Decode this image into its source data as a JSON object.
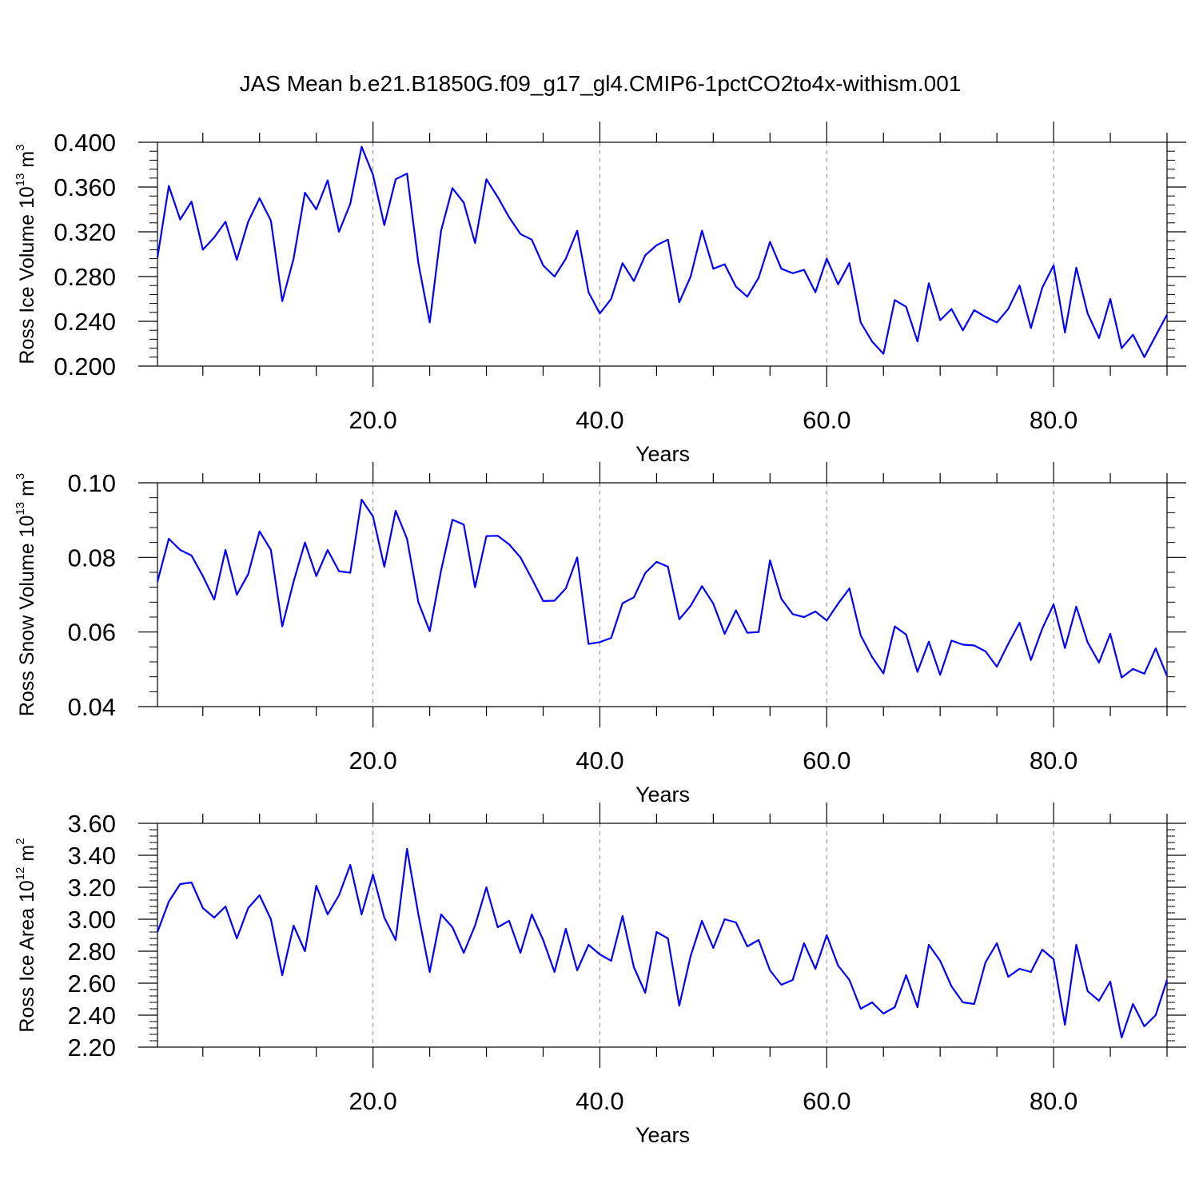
{
  "title": "JAS Mean b.e21.B1850G.f09_g17_gl4.CMIP6-1pctCO2to4x-withism.001",
  "colors": {
    "line": "#0000ff",
    "axis": "#000000",
    "grid": "#888888"
  },
  "chart_data": [
    {
      "type": "line",
      "ylabel": {
        "main": "Ross Ice Volume 10",
        "exp": "13",
        "unit": " m",
        "unit_exp": "3"
      },
      "xlabel": "Years",
      "xlim": [
        1,
        90
      ],
      "ylim": [
        0.2,
        0.4
      ],
      "xticks": [
        20,
        40,
        60,
        80
      ],
      "xtick_labels": [
        "20.0",
        "40.0",
        "60.0",
        "80.0"
      ],
      "yticks": [
        0.2,
        0.24,
        0.28,
        0.32,
        0.36,
        0.4
      ],
      "ytick_labels": [
        "0.200",
        "0.240",
        "0.280",
        "0.320",
        "0.360",
        "0.400"
      ],
      "grid": "vertical dashed at x ticks",
      "series": [
        {
          "x_start": 1,
          "values": [
            0.297,
            0.361,
            0.331,
            0.347,
            0.304,
            0.315,
            0.329,
            0.295,
            0.329,
            0.35,
            0.33,
            0.258,
            0.296,
            0.355,
            0.34,
            0.366,
            0.32,
            0.345,
            0.396,
            0.371,
            0.326,
            0.367,
            0.372,
            0.292,
            0.239,
            0.321,
            0.359,
            0.346,
            0.31,
            0.367,
            0.351,
            0.333,
            0.318,
            0.313,
            0.29,
            0.28,
            0.296,
            0.321,
            0.266,
            0.247,
            0.26,
            0.292,
            0.276,
            0.299,
            0.308,
            0.313,
            0.257,
            0.28,
            0.321,
            0.287,
            0.291,
            0.271,
            0.262,
            0.279,
            0.311,
            0.287,
            0.283,
            0.286,
            0.266,
            0.296,
            0.273,
            0.292,
            0.239,
            0.222,
            0.211,
            0.259,
            0.253,
            0.222,
            0.274,
            0.241,
            0.251,
            0.232,
            0.25,
            0.244,
            0.239,
            0.251,
            0.272,
            0.234,
            0.27,
            0.29,
            0.23,
            0.288,
            0.247,
            0.225,
            0.26,
            0.216,
            0.228,
            0.208,
            0.227,
            0.246
          ]
        }
      ]
    },
    {
      "type": "line",
      "ylabel": {
        "main": "Ross Snow Volume 10",
        "exp": "13",
        "unit": " m",
        "unit_exp": "3"
      },
      "xlabel": "Years",
      "xlim": [
        1,
        90
      ],
      "ylim": [
        0.04,
        0.1
      ],
      "xticks": [
        20,
        40,
        60,
        80
      ],
      "xtick_labels": [
        "20.0",
        "40.0",
        "60.0",
        "80.0"
      ],
      "yticks": [
        0.04,
        0.06,
        0.08,
        0.1
      ],
      "ytick_labels": [
        "0.04",
        "0.06",
        "0.08",
        "0.10"
      ],
      "grid": "vertical dashed at x ticks",
      "series": [
        {
          "x_start": 1,
          "values": [
            0.0735,
            0.085,
            0.082,
            0.0805,
            0.075,
            0.0687,
            0.082,
            0.07,
            0.0755,
            0.087,
            0.082,
            0.0615,
            0.0735,
            0.084,
            0.075,
            0.082,
            0.0763,
            0.0759,
            0.0955,
            0.091,
            0.0775,
            0.0925,
            0.085,
            0.068,
            0.0602,
            0.0765,
            0.0901,
            0.0888,
            0.072,
            0.0857,
            0.0858,
            0.0835,
            0.08,
            0.0743,
            0.0683,
            0.0684,
            0.0717,
            0.08,
            0.0568,
            0.0573,
            0.0584,
            0.0677,
            0.0693,
            0.0758,
            0.0788,
            0.0775,
            0.0634,
            0.067,
            0.0723,
            0.0676,
            0.0595,
            0.0658,
            0.0598,
            0.06,
            0.0792,
            0.0689,
            0.0648,
            0.064,
            0.0655,
            0.0631,
            0.0676,
            0.0717,
            0.0591,
            0.0533,
            0.0489,
            0.0615,
            0.0593,
            0.0493,
            0.0574,
            0.0485,
            0.0577,
            0.0566,
            0.0564,
            0.0548,
            0.0507,
            0.0568,
            0.0625,
            0.0525,
            0.0609,
            0.0674,
            0.0557,
            0.0668,
            0.0572,
            0.0518,
            0.0595,
            0.0478,
            0.0501,
            0.0488,
            0.0556,
            0.0482
          ]
        }
      ]
    },
    {
      "type": "line",
      "ylabel": {
        "main": "Ross Ice Area 10",
        "exp": "12",
        "unit": " m",
        "unit_exp": "2"
      },
      "xlabel": "Years",
      "xlim": [
        1,
        90
      ],
      "ylim": [
        2.2,
        3.6
      ],
      "xticks": [
        20,
        40,
        60,
        80
      ],
      "xtick_labels": [
        "20.0",
        "40.0",
        "60.0",
        "80.0"
      ],
      "yticks": [
        2.2,
        2.4,
        2.6,
        2.8,
        3.0,
        3.2,
        3.4,
        3.6
      ],
      "ytick_labels": [
        "2.20",
        "2.40",
        "2.60",
        "2.80",
        "3.00",
        "3.20",
        "3.40",
        "3.60"
      ],
      "grid": "vertical dashed at x ticks",
      "series": [
        {
          "x_start": 1,
          "values": [
            2.92,
            3.11,
            3.22,
            3.23,
            3.07,
            3.01,
            3.08,
            2.88,
            3.07,
            3.15,
            3.0,
            2.65,
            2.96,
            2.8,
            3.21,
            3.03,
            3.15,
            3.34,
            3.03,
            3.28,
            3.01,
            2.87,
            3.44,
            3.03,
            2.67,
            3.03,
            2.95,
            2.79,
            2.96,
            3.2,
            2.95,
            2.99,
            2.79,
            3.03,
            2.87,
            2.67,
            2.94,
            2.68,
            2.84,
            2.78,
            2.74,
            3.02,
            2.7,
            2.54,
            2.92,
            2.88,
            2.46,
            2.77,
            2.99,
            2.82,
            3.0,
            2.98,
            2.83,
            2.87,
            2.68,
            2.59,
            2.62,
            2.85,
            2.69,
            2.9,
            2.71,
            2.62,
            2.44,
            2.48,
            2.41,
            2.45,
            2.65,
            2.45,
            2.84,
            2.74,
            2.58,
            2.48,
            2.47,
            2.73,
            2.85,
            2.64,
            2.69,
            2.67,
            2.81,
            2.75,
            2.34,
            2.84,
            2.55,
            2.49,
            2.61,
            2.26,
            2.47,
            2.33,
            2.4,
            2.62
          ]
        }
      ]
    }
  ]
}
